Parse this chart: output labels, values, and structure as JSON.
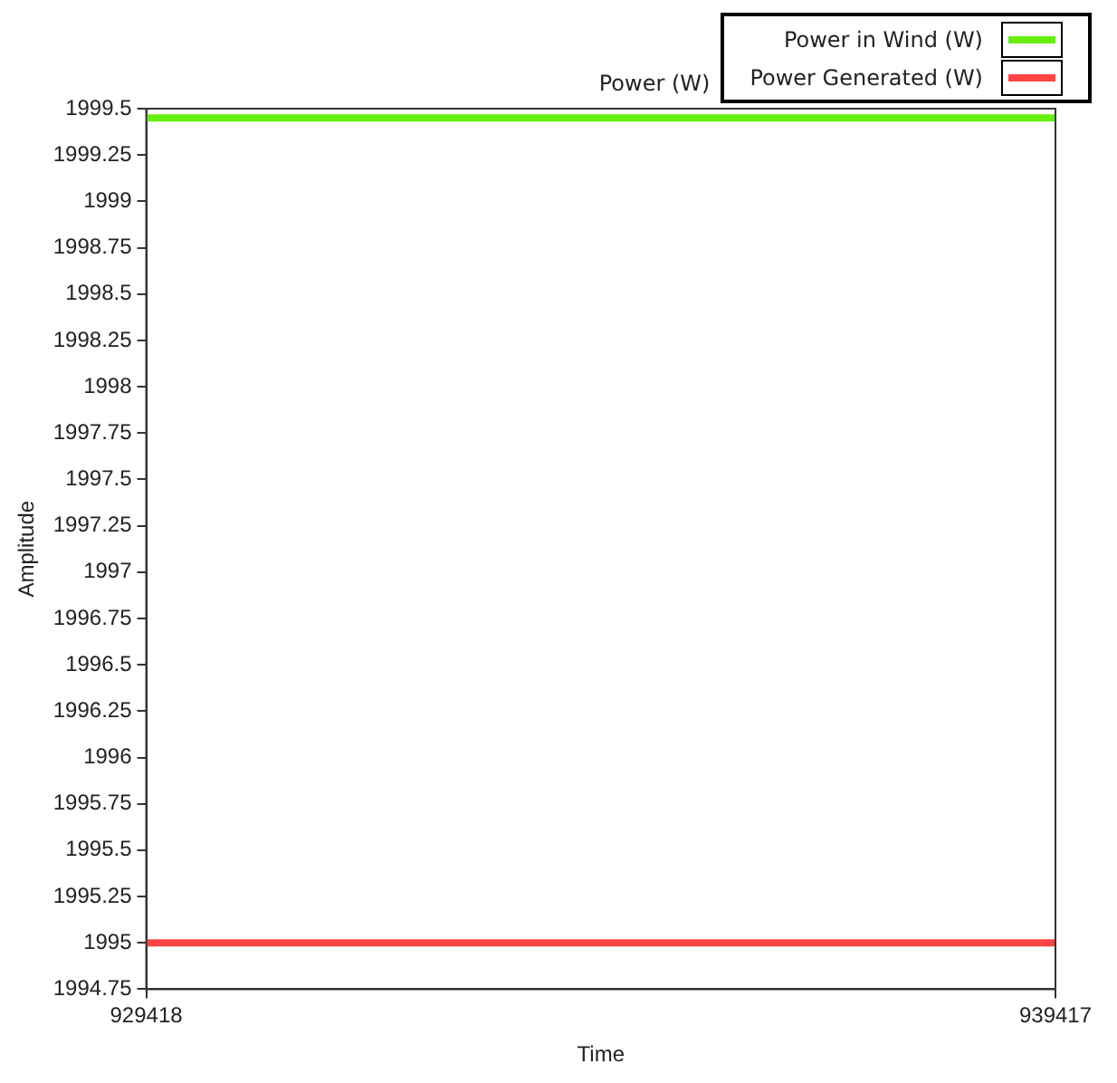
{
  "chart_data": {
    "type": "line",
    "title": "Power (W)",
    "xlabel": "Time",
    "ylabel": "Amplitude",
    "x": [
      929418,
      939417
    ],
    "series": [
      {
        "name": "Power in Wind (W)",
        "color": "#66ee11",
        "values": [
          1999.45,
          1999.45
        ]
      },
      {
        "name": "Power Generated (W)",
        "color": "#ff4444",
        "values": [
          1995,
          1995
        ]
      }
    ],
    "xlim": [
      929418,
      939417
    ],
    "xticks": [
      929418,
      939417
    ],
    "ylim": [
      1994.75,
      1999.5
    ],
    "yticks": [
      1994.75,
      1995,
      1995.25,
      1995.5,
      1995.75,
      1996,
      1996.25,
      1996.5,
      1996.75,
      1997,
      1997.25,
      1997.5,
      1997.75,
      1998,
      1998.25,
      1998.5,
      1998.75,
      1999,
      1999.25,
      1999.5
    ],
    "grid": false,
    "legend": "top right",
    "marker": "none",
    "line_style": "solid"
  }
}
